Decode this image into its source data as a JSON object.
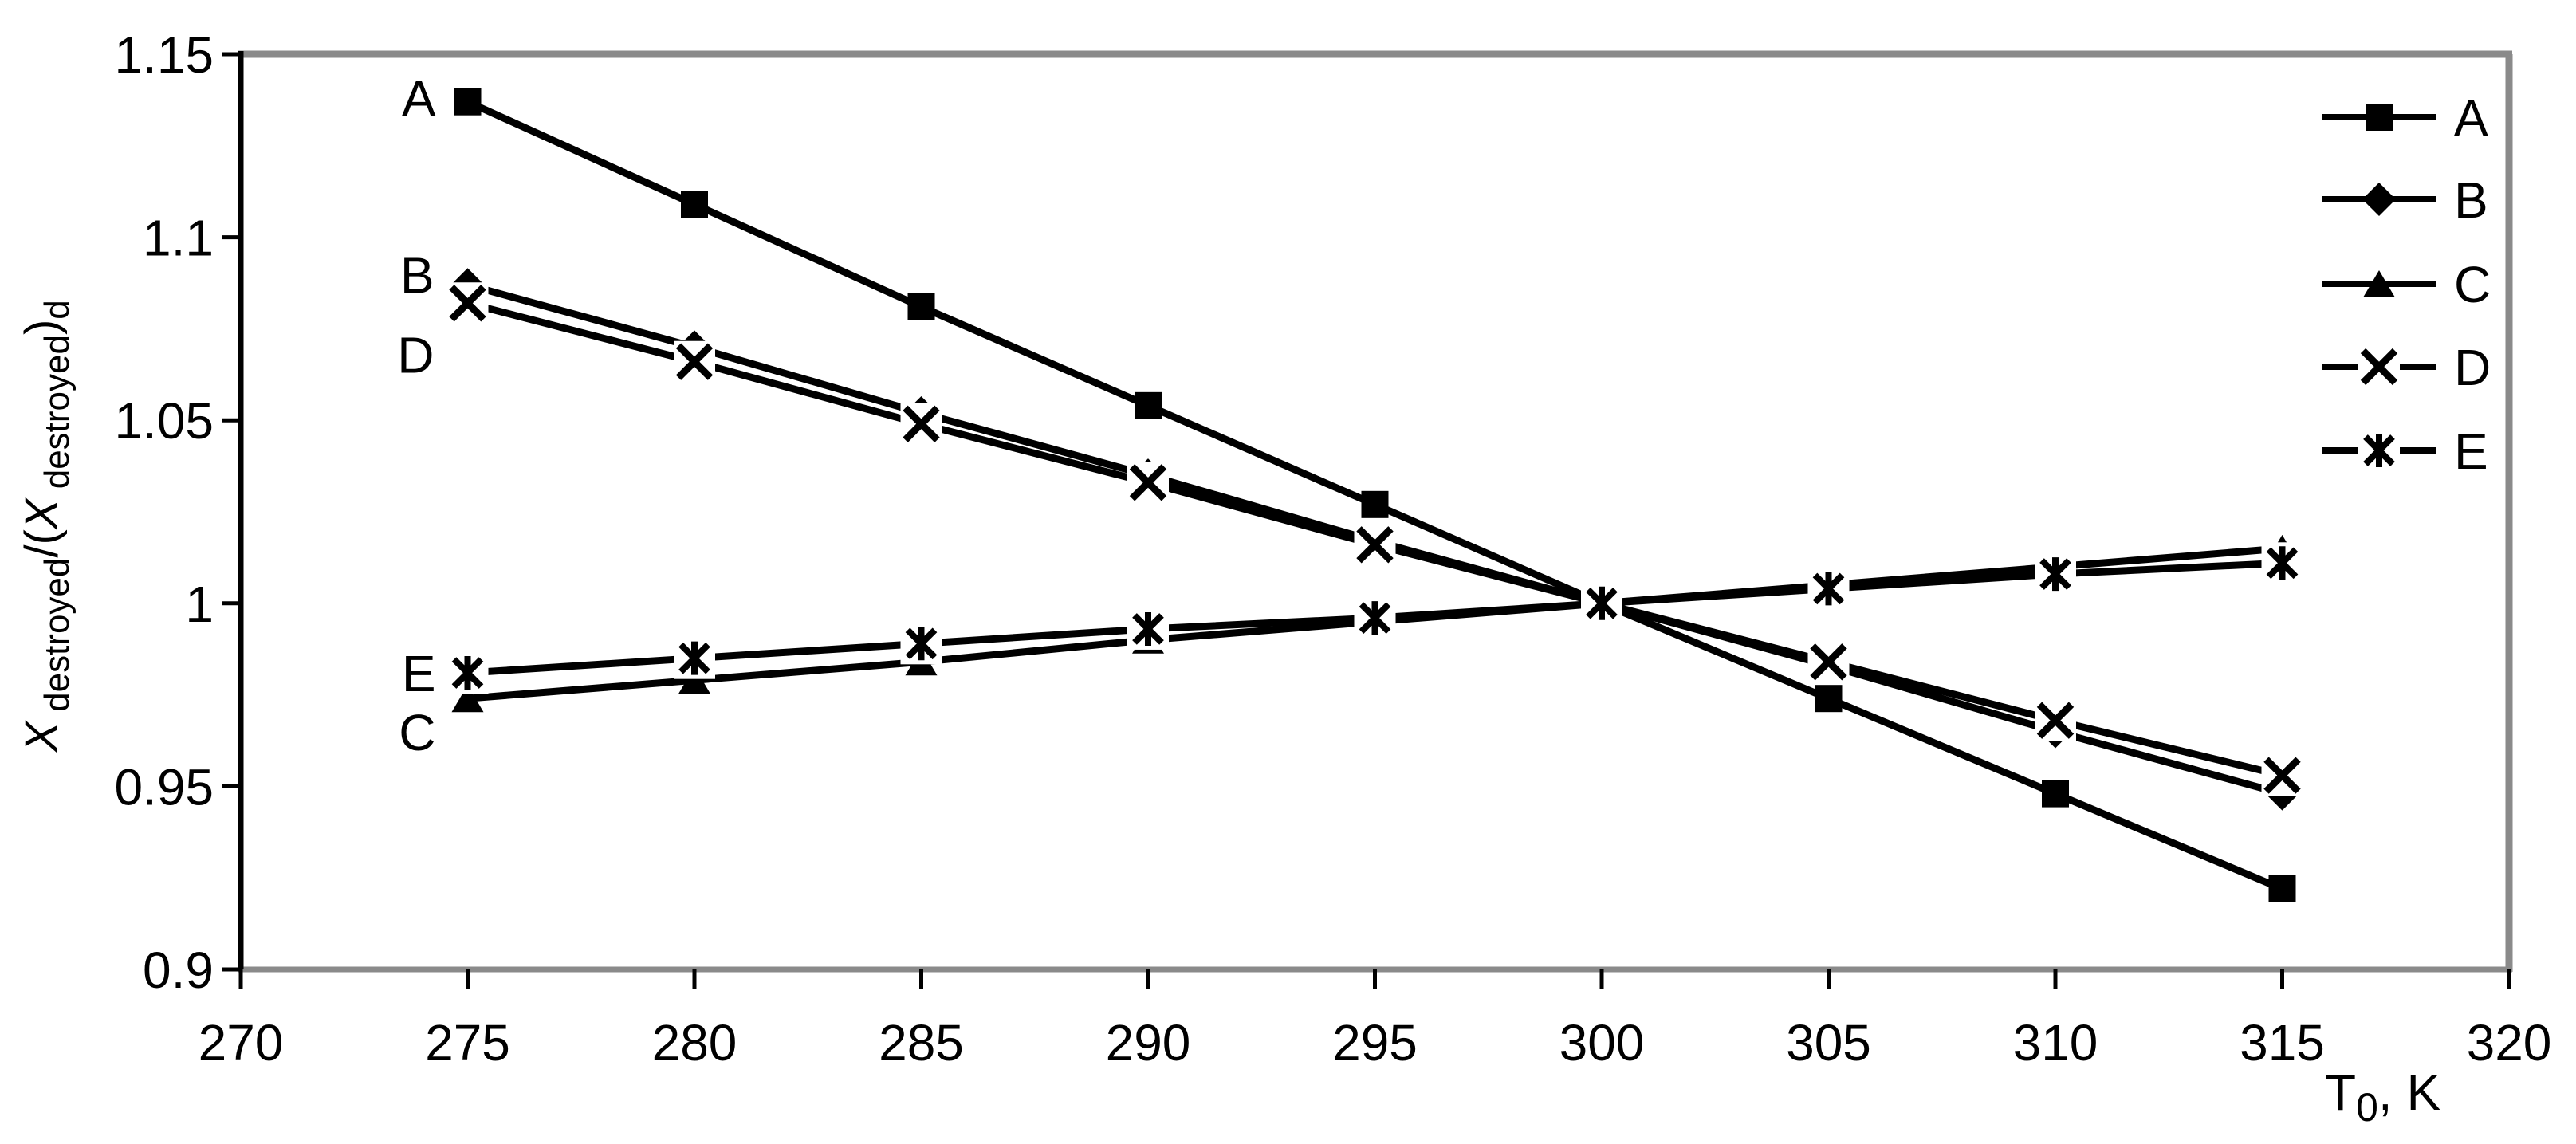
{
  "chart_data": {
    "type": "line",
    "title": "",
    "xlabel": "T0, K",
    "xlabel_parts": [
      {
        "t": "T",
        "sub": false
      },
      {
        "t": "0",
        "sub": true
      },
      {
        "t": ", K",
        "sub": false
      }
    ],
    "ylabel": "X destroyed/(X destroyed)d",
    "ylabel_parts": [
      {
        "t": "X",
        "sub": false,
        "italic": true
      },
      {
        "t": " destroyed",
        "sub": true
      },
      {
        "t": "/(",
        "sub": false
      },
      {
        "t": "X",
        "sub": false,
        "italic": true
      },
      {
        "t": " destroyed",
        "sub": true
      },
      {
        "t": ")",
        "sub": false
      },
      {
        "t": "d",
        "sub": true
      }
    ],
    "xlim": [
      270,
      320
    ],
    "ylim": [
      0.9,
      1.15
    ],
    "x_ticks": [
      270,
      275,
      280,
      285,
      290,
      295,
      300,
      305,
      310,
      315,
      320
    ],
    "x_tick_labels": [
      "270",
      "275",
      "280",
      "285",
      "290",
      "295",
      "300",
      "305",
      "310",
      "315",
      "320"
    ],
    "y_ticks": [
      1.15,
      1.1,
      1.05,
      1,
      0.95,
      0.9
    ],
    "y_tick_labels": [
      "1.15",
      "1.1",
      "1.05",
      "1",
      "0.95",
      "0.9"
    ],
    "grid": false,
    "x": [
      275,
      280,
      285,
      290,
      295,
      300,
      305,
      310,
      315
    ],
    "series": [
      {
        "name": "A",
        "marker": "square",
        "values": [
          1.137,
          1.109,
          1.081,
          1.054,
          1.027,
          1.0,
          0.974,
          0.948,
          0.922
        ],
        "inplot_label": {
          "text": "A",
          "at_x": 275,
          "dx": -40,
          "dy": 18
        }
      },
      {
        "name": "B",
        "marker": "diamond",
        "values": [
          1.087,
          1.07,
          1.052,
          1.035,
          1.017,
          1.0,
          0.983,
          0.965,
          0.948
        ],
        "inplot_label": {
          "text": "B",
          "at_x": 275,
          "dx": -42,
          "dy": 10
        }
      },
      {
        "name": "C",
        "marker": "triangle",
        "values": [
          0.974,
          0.979,
          0.984,
          0.99,
          0.995,
          1.0,
          1.005,
          1.01,
          1.015
        ],
        "inplot_label": {
          "text": "C",
          "at_x": 275,
          "dx": -40,
          "dy": 65
        }
      },
      {
        "name": "D",
        "marker": "x",
        "values": [
          1.082,
          1.066,
          1.049,
          1.033,
          1.016,
          1.0,
          0.984,
          0.968,
          0.953
        ],
        "inplot_label": {
          "text": "D",
          "at_x": 275,
          "dx": -42,
          "dy": 87
        }
      },
      {
        "name": "E",
        "marker": "asterisk",
        "values": [
          0.981,
          0.985,
          0.989,
          0.993,
          0.996,
          1.0,
          1.004,
          1.008,
          1.011
        ],
        "inplot_label": {
          "text": "E",
          "at_x": 275,
          "dx": -40,
          "dy": 23
        }
      }
    ],
    "legend": {
      "position": "top-right-inside",
      "entries": [
        "A",
        "B",
        "C",
        "D",
        "E"
      ]
    },
    "colors": {
      "series_line": "#000000",
      "marker_fill": "#000000",
      "plot_border_gray": "#8a8a8a",
      "axis_black": "#000000",
      "text": "#000000",
      "background": "#ffffff"
    }
  }
}
